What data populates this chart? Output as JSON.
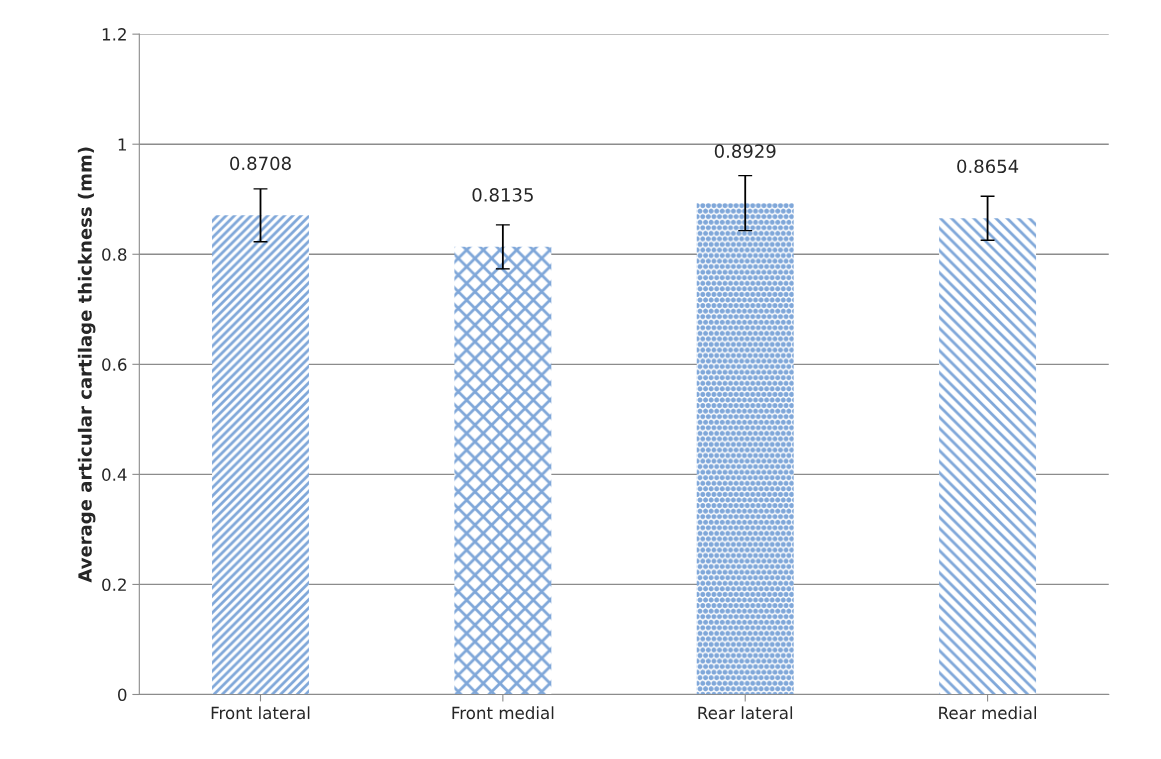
{
  "chart_data": {
    "type": "bar",
    "ylabel": "Average articular cartilage thickness (mm)",
    "categories": [
      "Front lateral",
      "Front medial",
      "Rear lateral",
      "Rear medial"
    ],
    "values": [
      0.8708,
      0.8135,
      0.8929,
      0.8654
    ],
    "errors": [
      0.048,
      0.04,
      0.05,
      0.04
    ],
    "color": "#7fa7d9",
    "data_labels": true,
    "ylim": [
      0,
      1.2
    ],
    "yticks": [
      0,
      0.2,
      0.4,
      0.6,
      0.8,
      1,
      1.2
    ],
    "grid": "y",
    "legend": false
  }
}
